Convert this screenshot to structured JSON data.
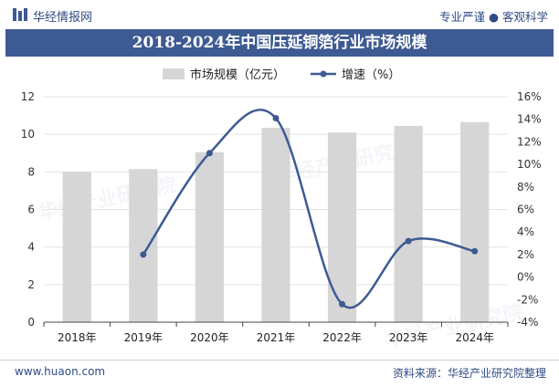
{
  "header": {
    "brand": "华经情报网",
    "slogan": "专业严谨 ● 客观科学"
  },
  "title": "2018-2024年中国压延铜箔行业市场规模",
  "footer": {
    "url": "www.huaon.com",
    "source": "资料来源：华经产业研究院整理"
  },
  "watermark": "华经产业研究院",
  "chart_data": {
    "type": "bar",
    "categories": [
      "2018年",
      "2019年",
      "2020年",
      "2021年",
      "2022年",
      "2023年",
      "2024年"
    ],
    "series": [
      {
        "name": "市场规模（亿元）",
        "type": "bar",
        "axis": "left",
        "values": [
          8.0,
          8.15,
          9.05,
          10.35,
          10.1,
          10.45,
          10.65
        ]
      },
      {
        "name": "增速（%）",
        "type": "line",
        "axis": "right",
        "smooth": true,
        "values": [
          null,
          2.0,
          11.0,
          14.1,
          -2.4,
          3.2,
          2.3
        ]
      }
    ],
    "y_left": {
      "min": 0,
      "max": 12,
      "ticks": [
        "0",
        "2",
        "4",
        "6",
        "8",
        "10",
        "12"
      ]
    },
    "y_right": {
      "min": -4,
      "max": 16,
      "ticks": [
        "-4%",
        "-2%",
        "0%",
        "2%",
        "4%",
        "6%",
        "8%",
        "10%",
        "12%",
        "14%",
        "16%"
      ]
    },
    "legend": "top",
    "grid": true
  },
  "colors": {
    "bar": "#d6d6d6",
    "line": "#3d5a93",
    "title_bg": "#3d5a93",
    "grid": "#e3e3e3"
  }
}
